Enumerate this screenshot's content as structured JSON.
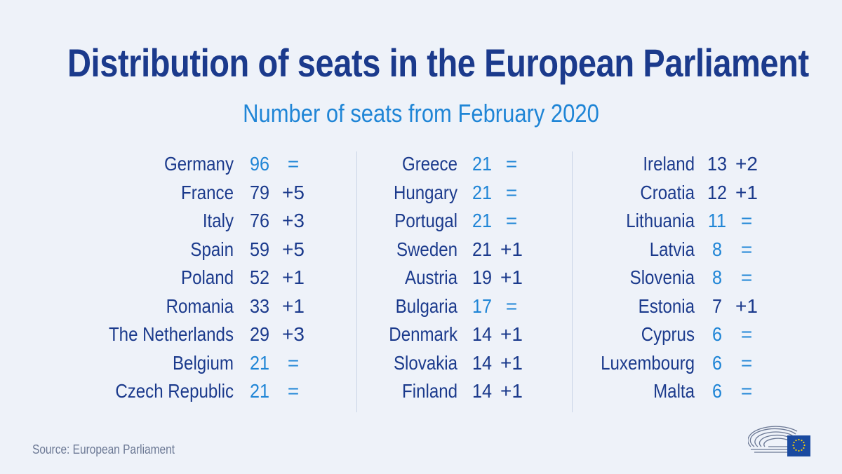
{
  "title": "Distribution of seats in the European Parliament",
  "subtitle": "Number of seats from February 2020",
  "source": "Source: European Parliament",
  "colors": {
    "background": "#eef2f9",
    "dark_blue": "#1b3a8c",
    "light_blue": "#1f85d6",
    "divider": "#c9d4e6",
    "source_text": "#6b7894",
    "eu_flag": "#1a4aa0",
    "eu_stars": "#ffd200"
  },
  "chart_data": {
    "type": "table",
    "title": "Distribution of seats in the European Parliament",
    "subtitle": "Number of seats from February 2020",
    "rows": [
      {
        "country": "Germany",
        "seats": "96",
        "change": "="
      },
      {
        "country": "France",
        "seats": "79",
        "change": "+5"
      },
      {
        "country": "Italy",
        "seats": "76",
        "change": "+3"
      },
      {
        "country": "Spain",
        "seats": "59",
        "change": "+5"
      },
      {
        "country": "Poland",
        "seats": "52",
        "change": "+1"
      },
      {
        "country": "Romania",
        "seats": "33",
        "change": "+1"
      },
      {
        "country": "The Netherlands",
        "seats": "29",
        "change": "+3"
      },
      {
        "country": "Belgium",
        "seats": "21",
        "change": "="
      },
      {
        "country": "Czech Republic",
        "seats": "21",
        "change": "="
      },
      {
        "country": "Greece",
        "seats": "21",
        "change": "="
      },
      {
        "country": "Hungary",
        "seats": "21",
        "change": "="
      },
      {
        "country": "Portugal",
        "seats": "21",
        "change": "="
      },
      {
        "country": "Sweden",
        "seats": "21",
        "change": "+1"
      },
      {
        "country": "Austria",
        "seats": "19",
        "change": "+1"
      },
      {
        "country": "Bulgaria",
        "seats": "17",
        "change": "="
      },
      {
        "country": "Denmark",
        "seats": "14",
        "change": "+1"
      },
      {
        "country": "Slovakia",
        "seats": "14",
        "change": "+1"
      },
      {
        "country": "Finland",
        "seats": "14",
        "change": "+1"
      },
      {
        "country": "Ireland",
        "seats": "13",
        "change": "+2"
      },
      {
        "country": "Croatia",
        "seats": "12",
        "change": "+1"
      },
      {
        "country": "Lithuania",
        "seats": "11",
        "change": "="
      },
      {
        "country": "Latvia",
        "seats": "8",
        "change": "="
      },
      {
        "country": "Slovenia",
        "seats": "8",
        "change": "="
      },
      {
        "country": "Estonia",
        "seats": "7",
        "change": "+1"
      },
      {
        "country": "Cyprus",
        "seats": "6",
        "change": "="
      },
      {
        "country": "Luxembourg",
        "seats": "6",
        "change": "="
      },
      {
        "country": "Malta",
        "seats": "6",
        "change": "="
      }
    ]
  }
}
